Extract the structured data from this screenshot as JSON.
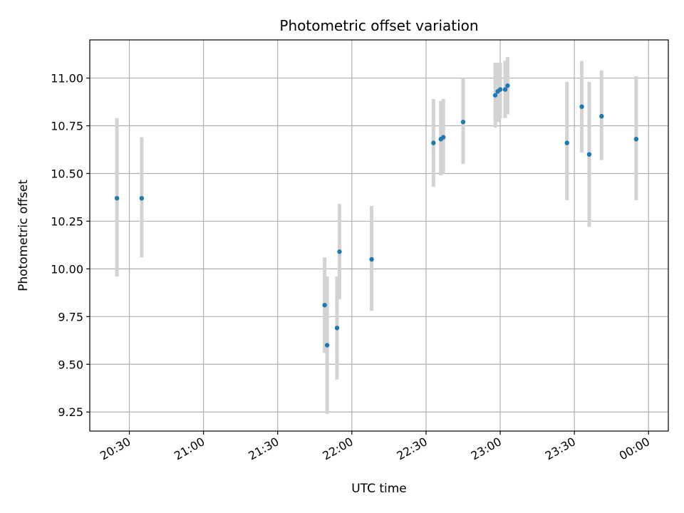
{
  "chart_data": {
    "type": "scatter",
    "title": "Photometric offset variation",
    "xlabel": "UTC time",
    "ylabel": "Photometric offset",
    "x_axis_kind": "time",
    "xlim": [
      "20:14",
      "00:08"
    ],
    "ylim": [
      9.15,
      11.2
    ],
    "grid": true,
    "x_ticks": [
      "20:30",
      "21:00",
      "21:30",
      "22:00",
      "22:30",
      "23:00",
      "23:30",
      "00:00"
    ],
    "y_ticks": [
      "9.25",
      "9.50",
      "9.75",
      "10.00",
      "10.25",
      "10.50",
      "10.75",
      "11.00"
    ],
    "colors": {
      "points": "#1f77b4",
      "errorbars": "#d3d3d3",
      "grid": "#b0b0b0"
    },
    "series": [
      {
        "points": [
          {
            "x": "20:25",
            "y": 10.37,
            "ylow": 9.96,
            "yhigh": 10.79
          },
          {
            "x": "20:35",
            "y": 10.37,
            "ylow": 10.06,
            "yhigh": 10.69
          },
          {
            "x": "21:49",
            "y": 9.81,
            "ylow": 9.56,
            "yhigh": 10.06
          },
          {
            "x": "21:50",
            "y": 9.6,
            "ylow": 9.24,
            "yhigh": 9.96
          },
          {
            "x": "21:54",
            "y": 9.69,
            "ylow": 9.42,
            "yhigh": 9.96
          },
          {
            "x": "21:55",
            "y": 10.09,
            "ylow": 9.84,
            "yhigh": 10.34
          },
          {
            "x": "22:08",
            "y": 10.05,
            "ylow": 9.78,
            "yhigh": 10.33
          },
          {
            "x": "22:33",
            "y": 10.66,
            "ylow": 10.43,
            "yhigh": 10.89
          },
          {
            "x": "22:36",
            "y": 10.68,
            "ylow": 10.49,
            "yhigh": 10.88
          },
          {
            "x": "22:37",
            "y": 10.69,
            "ylow": 10.5,
            "yhigh": 10.89
          },
          {
            "x": "22:45",
            "y": 10.77,
            "ylow": 10.55,
            "yhigh": 11.0
          },
          {
            "x": "22:58",
            "y": 10.91,
            "ylow": 10.74,
            "yhigh": 11.08
          },
          {
            "x": "22:59",
            "y": 10.93,
            "ylow": 10.77,
            "yhigh": 11.08
          },
          {
            "x": "23:00",
            "y": 10.94,
            "ylow": 10.79,
            "yhigh": 11.08
          },
          {
            "x": "23:02",
            "y": 10.94,
            "ylow": 10.79,
            "yhigh": 11.09
          },
          {
            "x": "23:03",
            "y": 10.96,
            "ylow": 10.81,
            "yhigh": 11.11
          },
          {
            "x": "23:27",
            "y": 10.66,
            "ylow": 10.36,
            "yhigh": 10.98
          },
          {
            "x": "23:33",
            "y": 10.85,
            "ylow": 10.61,
            "yhigh": 11.09
          },
          {
            "x": "23:36",
            "y": 10.6,
            "ylow": 10.22,
            "yhigh": 10.98
          },
          {
            "x": "23:41",
            "y": 10.8,
            "ylow": 10.57,
            "yhigh": 11.04
          },
          {
            "x": "23:55",
            "y": 10.68,
            "ylow": 10.36,
            "yhigh": 11.01
          }
        ]
      }
    ]
  }
}
